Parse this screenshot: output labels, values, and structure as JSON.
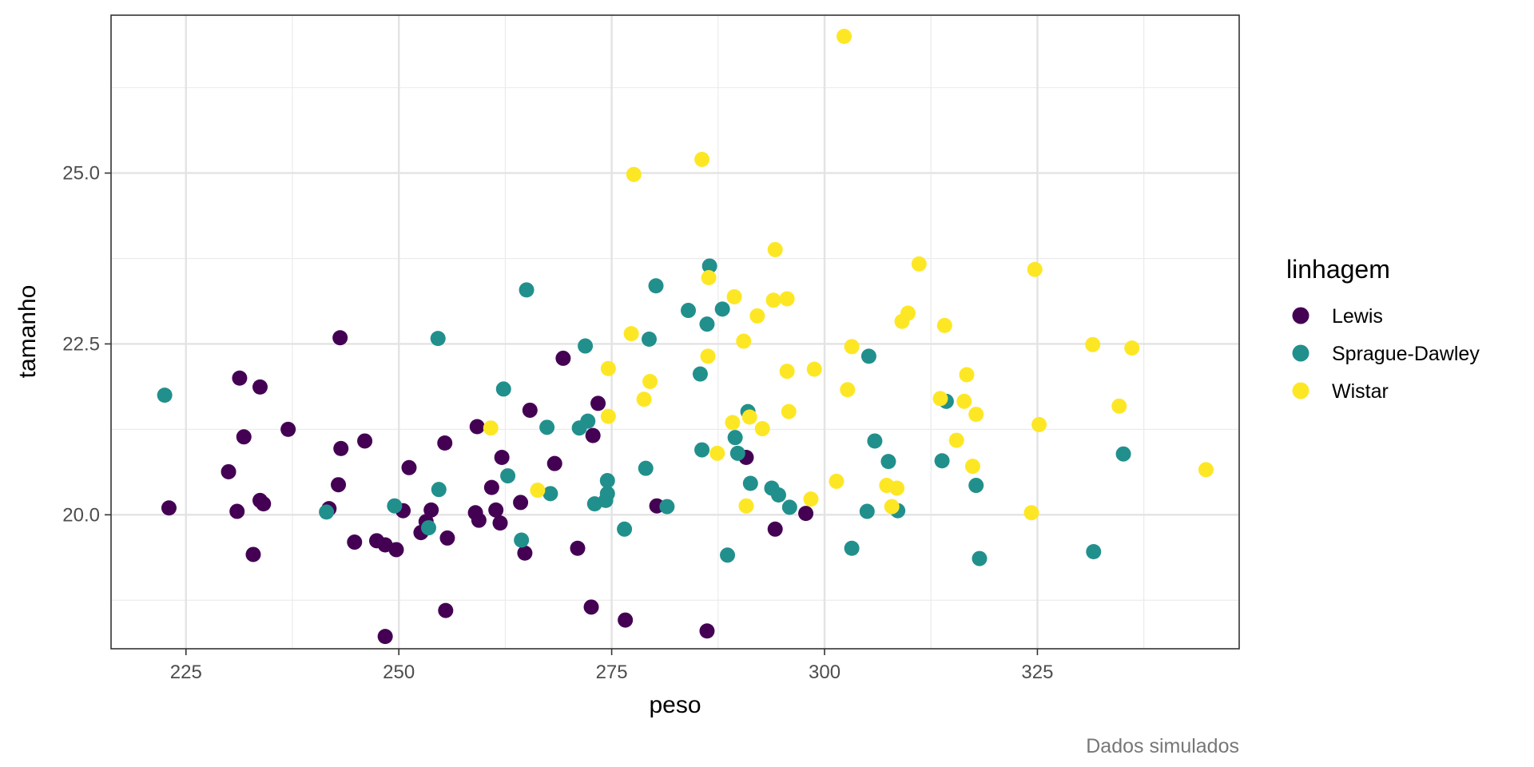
{
  "chart_data": {
    "type": "scatter",
    "title": "",
    "xlabel": "peso",
    "ylabel": "tamanho",
    "caption": "Dados simulados",
    "xlim": [
      216.2,
      348.7
    ],
    "ylim": [
      18.04,
      27.31
    ],
    "x_ticks": [
      225,
      250,
      275,
      300,
      325
    ],
    "x_tick_labels": [
      "225",
      "250",
      "275",
      "300",
      "325"
    ],
    "y_ticks": [
      20.0,
      22.5,
      25.0
    ],
    "y_tick_labels": [
      "20.0",
      "22.5",
      "25.0"
    ],
    "grid": true,
    "legend_title": "linhagem",
    "legend_position": "right",
    "series": [
      {
        "name": "Lewis",
        "color": "#440154",
        "points": [
          [
            223.0,
            20.1
          ],
          [
            230.0,
            20.63
          ],
          [
            231.0,
            20.05
          ],
          [
            231.3,
            22.0
          ],
          [
            231.8,
            21.14
          ],
          [
            232.9,
            19.42
          ],
          [
            233.7,
            20.21
          ],
          [
            233.7,
            21.87
          ],
          [
            234.1,
            20.16
          ],
          [
            237.0,
            21.25
          ],
          [
            241.8,
            20.09
          ],
          [
            242.9,
            20.44
          ],
          [
            243.1,
            22.59
          ],
          [
            243.2,
            20.97
          ],
          [
            244.8,
            19.6
          ],
          [
            246.0,
            21.08
          ],
          [
            247.4,
            19.62
          ],
          [
            248.4,
            19.56
          ],
          [
            248.4,
            18.22
          ],
          [
            249.7,
            19.49
          ],
          [
            250.5,
            20.06
          ],
          [
            251.2,
            20.69
          ],
          [
            252.6,
            19.74
          ],
          [
            253.2,
            19.9
          ],
          [
            253.8,
            20.07
          ],
          [
            255.4,
            21.05
          ],
          [
            255.5,
            18.6
          ],
          [
            255.7,
            19.66
          ],
          [
            259.0,
            20.03
          ],
          [
            259.2,
            21.29
          ],
          [
            259.4,
            19.92
          ],
          [
            260.9,
            20.4
          ],
          [
            261.4,
            20.07
          ],
          [
            261.9,
            19.88
          ],
          [
            262.1,
            20.84
          ],
          [
            264.3,
            20.18
          ],
          [
            264.8,
            19.44
          ],
          [
            265.4,
            21.53
          ],
          [
            268.3,
            20.75
          ],
          [
            269.3,
            22.29
          ],
          [
            271.0,
            19.51
          ],
          [
            272.6,
            18.65
          ],
          [
            272.8,
            21.16
          ],
          [
            273.4,
            21.63
          ],
          [
            276.6,
            18.46
          ],
          [
            280.3,
            20.13
          ],
          [
            286.2,
            18.3
          ],
          [
            290.8,
            20.84
          ],
          [
            294.2,
            19.79
          ],
          [
            297.8,
            20.02
          ]
        ]
      },
      {
        "name": "Sprague-Dawley",
        "color": "#21908C",
        "points": [
          [
            222.5,
            21.75
          ],
          [
            241.5,
            20.04
          ],
          [
            249.5,
            20.13
          ],
          [
            253.5,
            19.81
          ],
          [
            254.6,
            22.58
          ],
          [
            254.7,
            20.37
          ],
          [
            262.3,
            21.84
          ],
          [
            262.8,
            20.57
          ],
          [
            264.4,
            19.63
          ],
          [
            265.0,
            23.29
          ],
          [
            267.4,
            21.28
          ],
          [
            267.8,
            20.31
          ],
          [
            271.2,
            21.27
          ],
          [
            271.9,
            22.47
          ],
          [
            272.2,
            21.37
          ],
          [
            273.0,
            20.16
          ],
          [
            274.3,
            20.21
          ],
          [
            274.5,
            20.5
          ],
          [
            274.5,
            20.31
          ],
          [
            276.5,
            19.79
          ],
          [
            279.0,
            20.68
          ],
          [
            279.4,
            22.57
          ],
          [
            280.2,
            23.35
          ],
          [
            281.5,
            20.12
          ],
          [
            284.0,
            22.99
          ],
          [
            285.4,
            22.06
          ],
          [
            285.6,
            20.95
          ],
          [
            286.2,
            22.79
          ],
          [
            286.5,
            23.64
          ],
          [
            288.0,
            23.01
          ],
          [
            288.6,
            19.41
          ],
          [
            289.5,
            21.13
          ],
          [
            289.8,
            20.9
          ],
          [
            291.0,
            21.51
          ],
          [
            291.3,
            20.46
          ],
          [
            293.8,
            20.39
          ],
          [
            294.6,
            20.29
          ],
          [
            295.9,
            20.11
          ],
          [
            305.0,
            20.05
          ],
          [
            305.2,
            22.32
          ],
          [
            305.9,
            21.08
          ],
          [
            307.5,
            20.78
          ],
          [
            308.6,
            20.06
          ],
          [
            313.8,
            20.79
          ],
          [
            314.3,
            21.66
          ],
          [
            317.8,
            20.43
          ],
          [
            318.2,
            19.36
          ],
          [
            303.2,
            19.51
          ],
          [
            331.6,
            19.46
          ],
          [
            335.1,
            20.89
          ]
        ]
      },
      {
        "name": "Wistar",
        "color": "#FDE725",
        "points": [
          [
            260.8,
            21.27
          ],
          [
            266.3,
            20.36
          ],
          [
            274.6,
            22.14
          ],
          [
            274.6,
            21.44
          ],
          [
            277.3,
            22.65
          ],
          [
            277.6,
            24.98
          ],
          [
            278.8,
            21.69
          ],
          [
            279.5,
            21.95
          ],
          [
            285.6,
            25.2
          ],
          [
            286.3,
            22.32
          ],
          [
            286.4,
            23.47
          ],
          [
            287.4,
            20.9
          ],
          [
            289.2,
            21.35
          ],
          [
            289.4,
            23.19
          ],
          [
            290.5,
            22.54
          ],
          [
            290.8,
            20.13
          ],
          [
            291.2,
            21.43
          ],
          [
            292.1,
            22.91
          ],
          [
            292.7,
            21.26
          ],
          [
            294.0,
            23.14
          ],
          [
            294.2,
            23.88
          ],
          [
            295.6,
            23.16
          ],
          [
            295.6,
            22.1
          ],
          [
            295.8,
            21.51
          ],
          [
            298.4,
            20.23
          ],
          [
            298.8,
            22.13
          ],
          [
            301.4,
            20.49
          ],
          [
            302.3,
            27.0
          ],
          [
            302.7,
            21.83
          ],
          [
            303.2,
            22.46
          ],
          [
            307.3,
            20.43
          ],
          [
            307.9,
            20.12
          ],
          [
            308.5,
            20.39
          ],
          [
            309.1,
            22.83
          ],
          [
            309.8,
            22.95
          ],
          [
            311.1,
            23.67
          ],
          [
            313.6,
            21.7
          ],
          [
            314.1,
            22.77
          ],
          [
            315.5,
            21.09
          ],
          [
            316.4,
            21.66
          ],
          [
            316.7,
            22.05
          ],
          [
            317.4,
            20.71
          ],
          [
            317.8,
            21.47
          ],
          [
            324.3,
            20.03
          ],
          [
            324.7,
            23.59
          ],
          [
            325.2,
            21.32
          ],
          [
            331.5,
            22.49
          ],
          [
            334.6,
            21.59
          ],
          [
            336.1,
            22.44
          ],
          [
            344.8,
            20.66
          ]
        ]
      }
    ]
  }
}
